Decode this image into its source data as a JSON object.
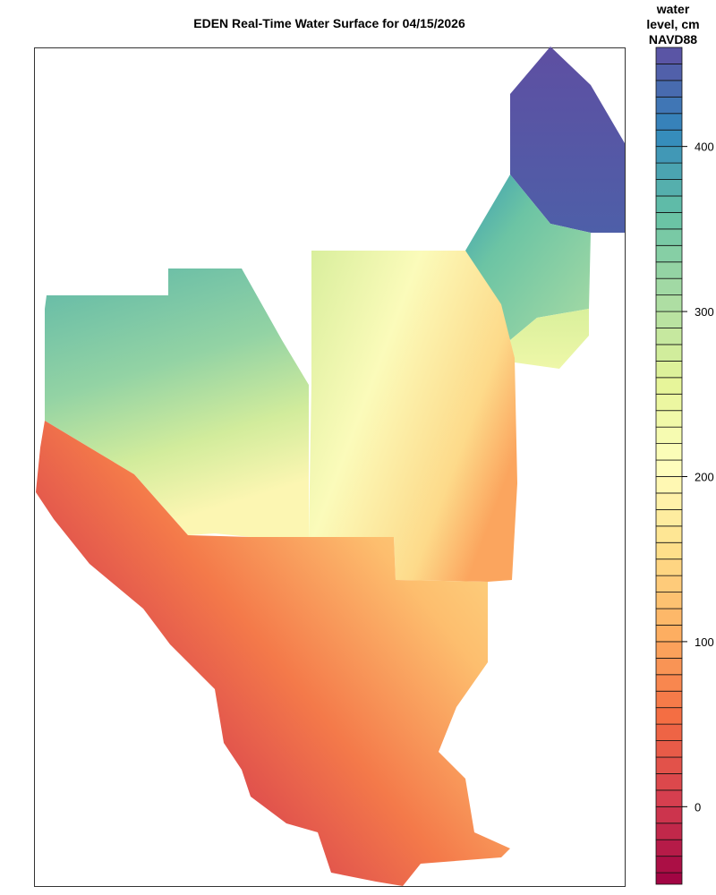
{
  "title": "EDEN Real-Time Water Surface for 04/15/2026",
  "legend": {
    "title_lines": [
      "water",
      "level, cm",
      "NAVD88"
    ],
    "ticks": [
      0,
      100,
      200,
      300,
      400
    ],
    "range": [
      -47,
      460
    ],
    "band_step": 10,
    "palette": [
      "#9E0142",
      "#D53E4F",
      "#F46D43",
      "#FDAE61",
      "#FEE08B",
      "#FFFFBF",
      "#E6F598",
      "#ABDDA4",
      "#66C2A5",
      "#3288BD",
      "#5E4FA2"
    ]
  }
}
